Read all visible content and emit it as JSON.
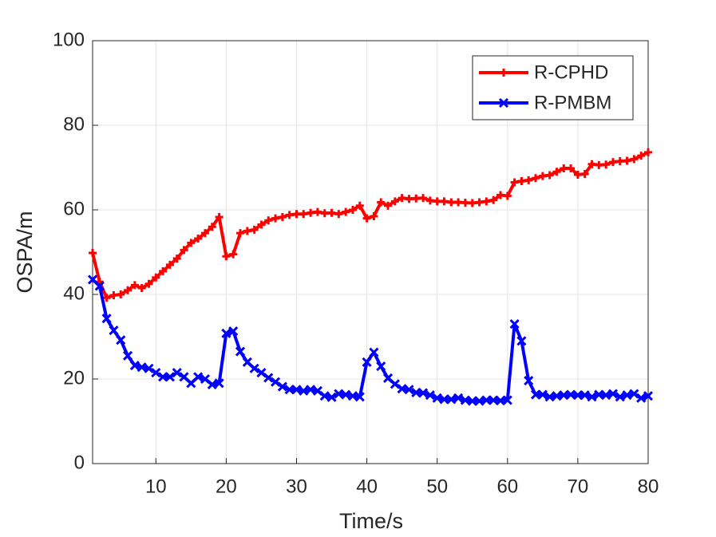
{
  "chart_data": {
    "type": "line",
    "xlabel": "Time/s",
    "ylabel": "OSPA/m",
    "x": [
      1,
      2,
      3,
      4,
      5,
      6,
      7,
      8,
      9,
      10,
      11,
      12,
      13,
      14,
      15,
      16,
      17,
      18,
      19,
      20,
      21,
      22,
      23,
      24,
      25,
      26,
      27,
      28,
      29,
      30,
      31,
      32,
      33,
      34,
      35,
      36,
      37,
      38,
      39,
      40,
      41,
      42,
      43,
      44,
      45,
      46,
      47,
      48,
      49,
      50,
      51,
      52,
      53,
      54,
      55,
      56,
      57,
      58,
      59,
      60,
      61,
      62,
      63,
      64,
      65,
      66,
      67,
      68,
      69,
      70,
      71,
      72,
      73,
      74,
      75,
      76,
      77,
      78,
      79,
      80
    ],
    "series": [
      {
        "name": "R-CPHD",
        "color": "#ff0000",
        "marker": "+",
        "values": [
          49.8,
          43,
          39.2,
          39.8,
          40,
          41,
          42.2,
          41.5,
          42.5,
          44,
          45.5,
          47,
          48.5,
          50.5,
          52.2,
          53.2,
          54.5,
          56,
          58.3,
          49,
          49.5,
          54.5,
          55,
          55.3,
          56.5,
          57.5,
          58,
          58.3,
          58.8,
          59,
          59,
          59.3,
          59.5,
          59.2,
          59.3,
          59,
          59.5,
          60,
          61,
          58,
          58.5,
          61.8,
          61,
          62,
          62.8,
          62.6,
          62.7,
          62.8,
          62.2,
          62,
          62,
          61.8,
          61.8,
          61.7,
          61.6,
          61.8,
          62,
          62.3,
          63.5,
          63.3,
          66.5,
          66.8,
          67,
          67.5,
          68,
          68.2,
          69,
          69.8,
          69.8,
          68.3,
          68.5,
          70.8,
          70.6,
          70.7,
          71.3,
          71.5,
          71.6,
          72,
          72.8,
          73.6
        ]
      },
      {
        "name": "R-PMBM",
        "color": "#0000ff",
        "marker": "x",
        "values": [
          43.5,
          42,
          34.3,
          31.5,
          29.2,
          25.5,
          23.2,
          22.8,
          22.5,
          21.5,
          20.5,
          20.5,
          21.5,
          20.5,
          19,
          20.5,
          20,
          18.7,
          19,
          30.8,
          31.3,
          26.5,
          24,
          22.5,
          21.5,
          20.3,
          19.3,
          18.2,
          17.5,
          17.5,
          17.2,
          17.5,
          17.2,
          16,
          15.7,
          16.5,
          16.3,
          16,
          15.8,
          24,
          26.3,
          23,
          20.2,
          18.8,
          17.7,
          17.5,
          16.8,
          16.7,
          16.2,
          15.5,
          15.2,
          15.2,
          15.5,
          15,
          14.8,
          14.8,
          15,
          15,
          14.9,
          15,
          33,
          29,
          19.6,
          16.3,
          16.3,
          15.8,
          16,
          16.2,
          16.3,
          16.2,
          16.2,
          15.8,
          16.3,
          16.2,
          16.5,
          15.8,
          16.2,
          16.5,
          15.5,
          16
        ]
      }
    ],
    "xlim": [
      1,
      80
    ],
    "xticks": [
      10,
      20,
      30,
      40,
      50,
      60,
      70,
      80
    ],
    "ylim": [
      0,
      100
    ],
    "yticks": [
      0,
      20,
      40,
      60,
      80,
      100
    ],
    "grid": true,
    "legend": "northeast"
  }
}
